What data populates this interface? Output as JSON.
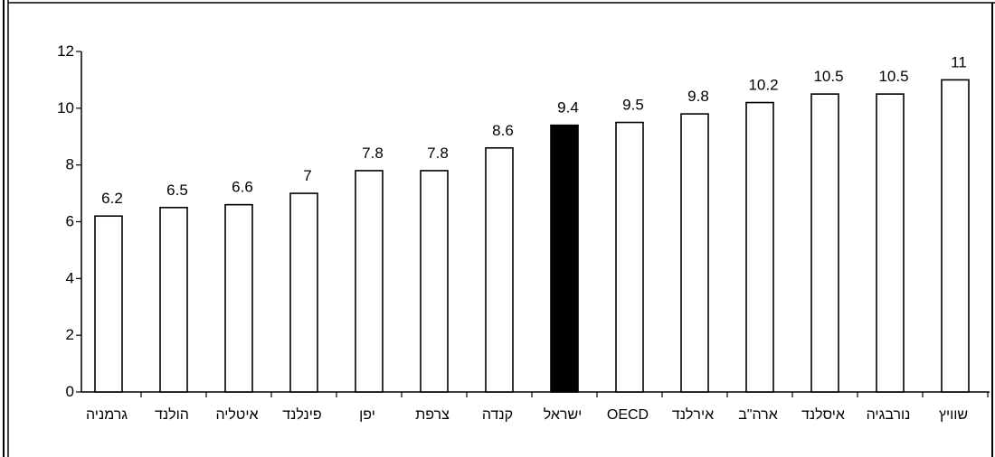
{
  "chart_data": {
    "type": "bar",
    "categories": [
      "גרמניה",
      "הולנד",
      "איטליה",
      "פינלנד",
      "יפן",
      "צרפת",
      "קנדה",
      "ישראל",
      "OECD",
      "אירלנד",
      "ארה\"ב",
      "איסלנד",
      "נורבגיה",
      "שוויץ"
    ],
    "values": [
      6.2,
      6.5,
      6.6,
      7,
      7.8,
      7.8,
      8.6,
      9.4,
      9.5,
      9.8,
      10.2,
      10.5,
      10.5,
      11
    ],
    "value_labels": [
      "6.2",
      "6.5",
      "6.6",
      "7",
      "7.8",
      "7.8",
      "8.6",
      "9.4",
      "9.5",
      "9.8",
      "10.2",
      "10.5",
      "10.5",
      "11"
    ],
    "highlight_category": "ישראל",
    "yticks": [
      "0",
      "2",
      "4",
      "6",
      "8",
      "10",
      "12"
    ],
    "ylim": [
      0,
      12
    ],
    "title": "",
    "xlabel": "",
    "ylabel": "",
    "grid": false,
    "colors": {
      "bar_fill": "#ffffff",
      "highlight_fill": "#000000",
      "stroke": "#000000"
    }
  }
}
